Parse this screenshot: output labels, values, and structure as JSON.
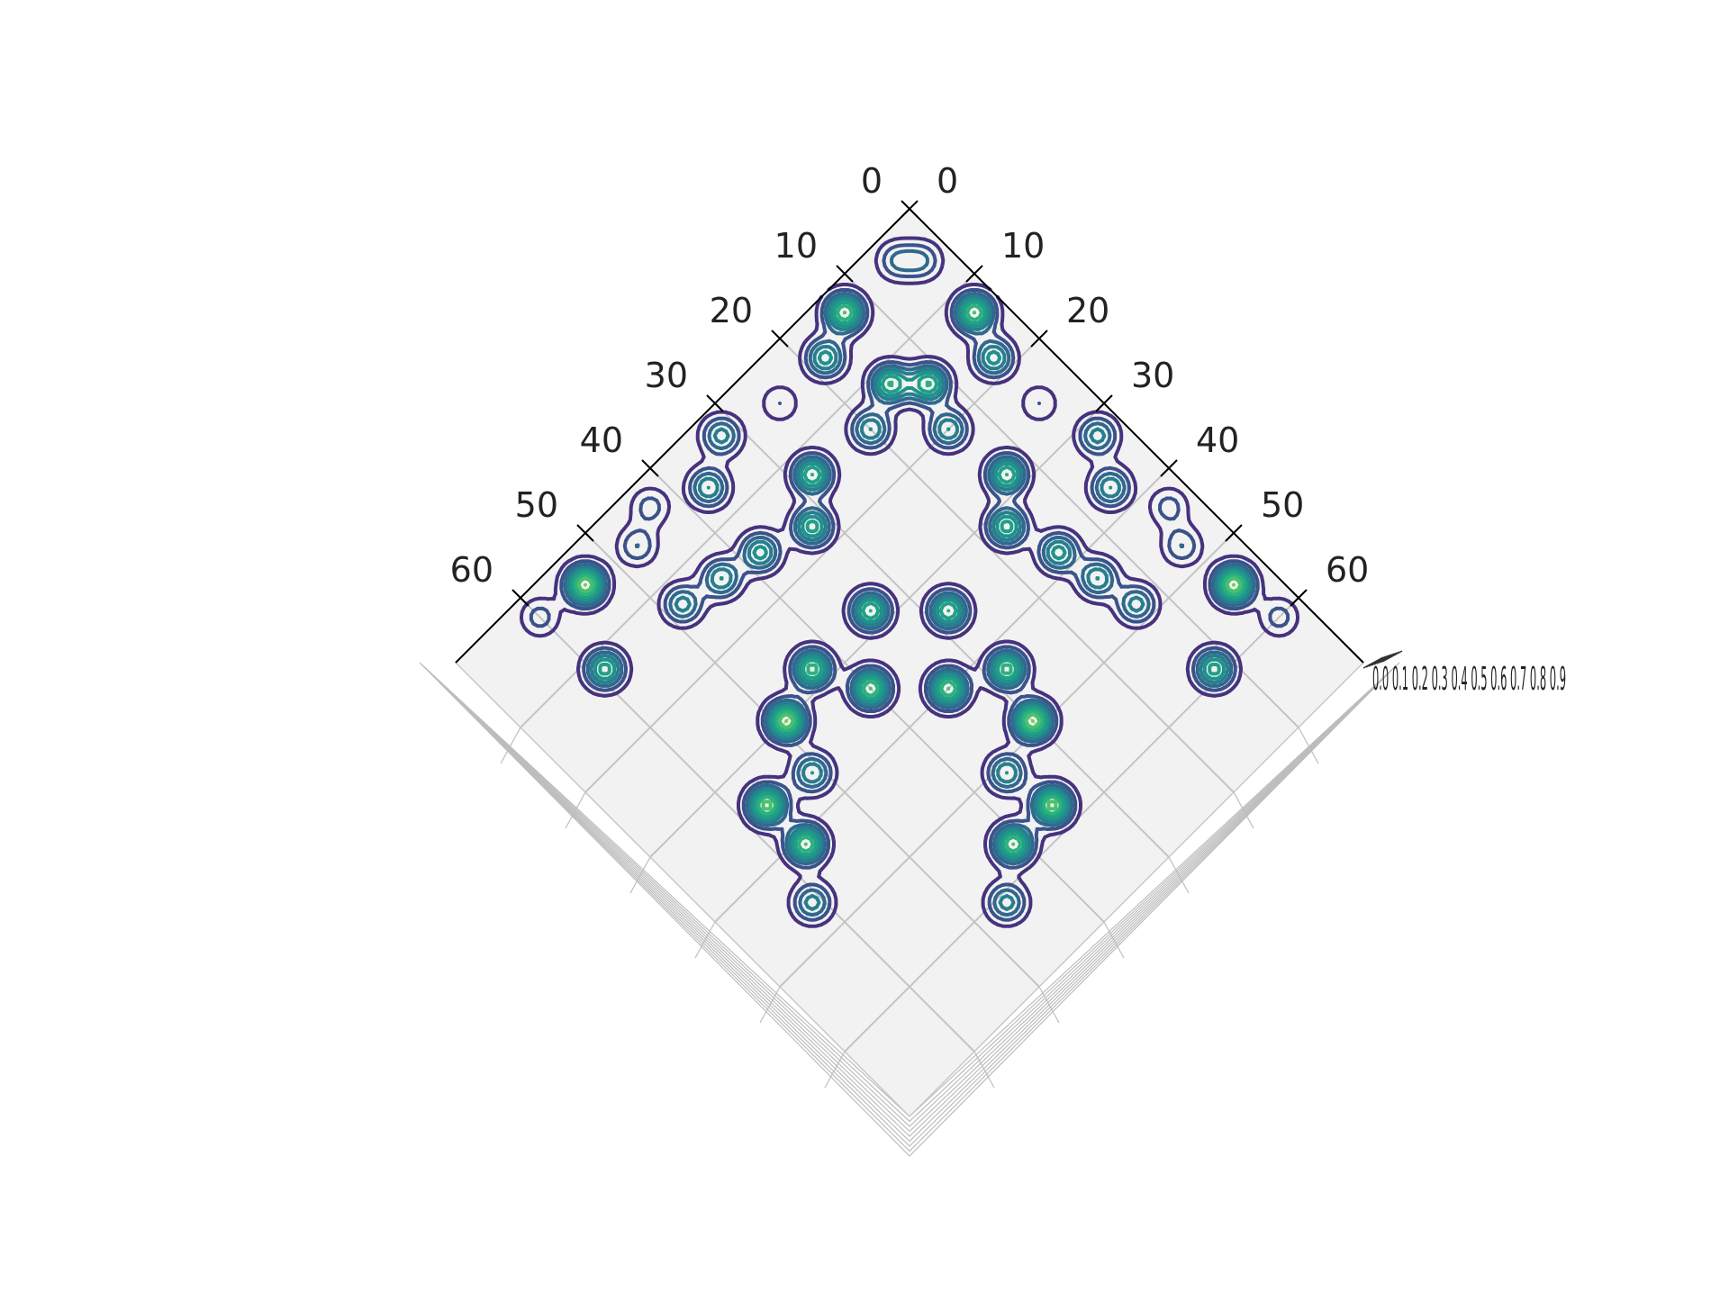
{
  "chart_data": {
    "type": "contour",
    "projection": "3d top-down view, rotated 45 degrees",
    "x_axis": {
      "ticks": [
        0,
        10,
        20,
        30,
        40,
        50,
        60
      ],
      "range": [
        0,
        70
      ]
    },
    "y_axis": {
      "ticks": [
        0,
        10,
        20,
        30,
        40,
        50,
        60
      ],
      "range": [
        0,
        70
      ]
    },
    "z_axis": {
      "tick_labels_overlapping": "0.0 0.1 0.2 0.3 0.4 0.5 0.6 0.7 0.8 0.9",
      "range": [
        0,
        1
      ]
    },
    "levels": 9,
    "colormap": "viridis",
    "grid": true,
    "pane_color": "#f2f2f2",
    "level_colors": [
      "#46327e",
      "#3b528b",
      "#31688e",
      "#277f8e",
      "#21918c",
      "#1fa187",
      "#2db27d",
      "#4ac16d",
      "#73d056"
    ],
    "peaks": [
      {
        "x": 5,
        "y": 3,
        "amp": 0.3
      },
      {
        "x": 3,
        "y": 5,
        "amp": 0.3
      },
      {
        "x": 13,
        "y": 3,
        "amp": 0.8
      },
      {
        "x": 3,
        "y": 13,
        "amp": 0.8
      },
      {
        "x": 18,
        "y": 5,
        "amp": 0.55
      },
      {
        "x": 5,
        "y": 18,
        "amp": 0.55
      },
      {
        "x": 25,
        "y": 5,
        "amp": 0.2
      },
      {
        "x": 5,
        "y": 25,
        "amp": 0.2
      },
      {
        "x": 32,
        "y": 3,
        "amp": 0.45
      },
      {
        "x": 3,
        "y": 32,
        "amp": 0.45
      },
      {
        "x": 37,
        "y": 6,
        "amp": 0.5
      },
      {
        "x": 6,
        "y": 37,
        "amp": 0.5
      },
      {
        "x": 43,
        "y": 3,
        "amp": 0.25
      },
      {
        "x": 3,
        "y": 43,
        "amp": 0.25
      },
      {
        "x": 47,
        "y": 5,
        "amp": 0.3
      },
      {
        "x": 5,
        "y": 47,
        "amp": 0.3
      },
      {
        "x": 54,
        "y": 4,
        "amp": 0.9
      },
      {
        "x": 4,
        "y": 54,
        "amp": 0.9
      },
      {
        "x": 60,
        "y": 3,
        "amp": 0.25
      },
      {
        "x": 3,
        "y": 60,
        "amp": 0.25
      },
      {
        "x": 15,
        "y": 12,
        "amp": 0.7
      },
      {
        "x": 12,
        "y": 15,
        "amp": 0.7
      },
      {
        "x": 20,
        "y": 14,
        "amp": 0.5
      },
      {
        "x": 14,
        "y": 20,
        "amp": 0.5
      },
      {
        "x": 28,
        "y": 13,
        "amp": 0.7
      },
      {
        "x": 13,
        "y": 28,
        "amp": 0.7
      },
      {
        "x": 32,
        "y": 17,
        "amp": 0.65
      },
      {
        "x": 17,
        "y": 32,
        "amp": 0.65
      },
      {
        "x": 38,
        "y": 15,
        "amp": 0.55
      },
      {
        "x": 15,
        "y": 38,
        "amp": 0.55
      },
      {
        "x": 43,
        "y": 14,
        "amp": 0.5
      },
      {
        "x": 14,
        "y": 43,
        "amp": 0.5
      },
      {
        "x": 48,
        "y": 13,
        "amp": 0.45
      },
      {
        "x": 13,
        "y": 48,
        "amp": 0.45
      },
      {
        "x": 59,
        "y": 12,
        "amp": 0.65
      },
      {
        "x": 12,
        "y": 59,
        "amp": 0.65
      },
      {
        "x": 34,
        "y": 28,
        "amp": 0.7
      },
      {
        "x": 28,
        "y": 34,
        "amp": 0.7
      },
      {
        "x": 43,
        "y": 28,
        "amp": 0.75
      },
      {
        "x": 28,
        "y": 43,
        "amp": 0.75
      },
      {
        "x": 40,
        "y": 34,
        "amp": 0.8
      },
      {
        "x": 34,
        "y": 40,
        "amp": 0.8
      },
      {
        "x": 49,
        "y": 30,
        "amp": 0.9
      },
      {
        "x": 30,
        "y": 49,
        "amp": 0.9
      },
      {
        "x": 51,
        "y": 36,
        "amp": 0.5
      },
      {
        "x": 36,
        "y": 51,
        "amp": 0.5
      },
      {
        "x": 57,
        "y": 35,
        "amp": 0.85
      },
      {
        "x": 35,
        "y": 57,
        "amp": 0.85
      },
      {
        "x": 57,
        "y": 41,
        "amp": 0.8
      },
      {
        "x": 41,
        "y": 57,
        "amp": 0.8
      },
      {
        "x": 61,
        "y": 46,
        "amp": 0.45
      },
      {
        "x": 46,
        "y": 61,
        "amp": 0.45
      }
    ]
  }
}
